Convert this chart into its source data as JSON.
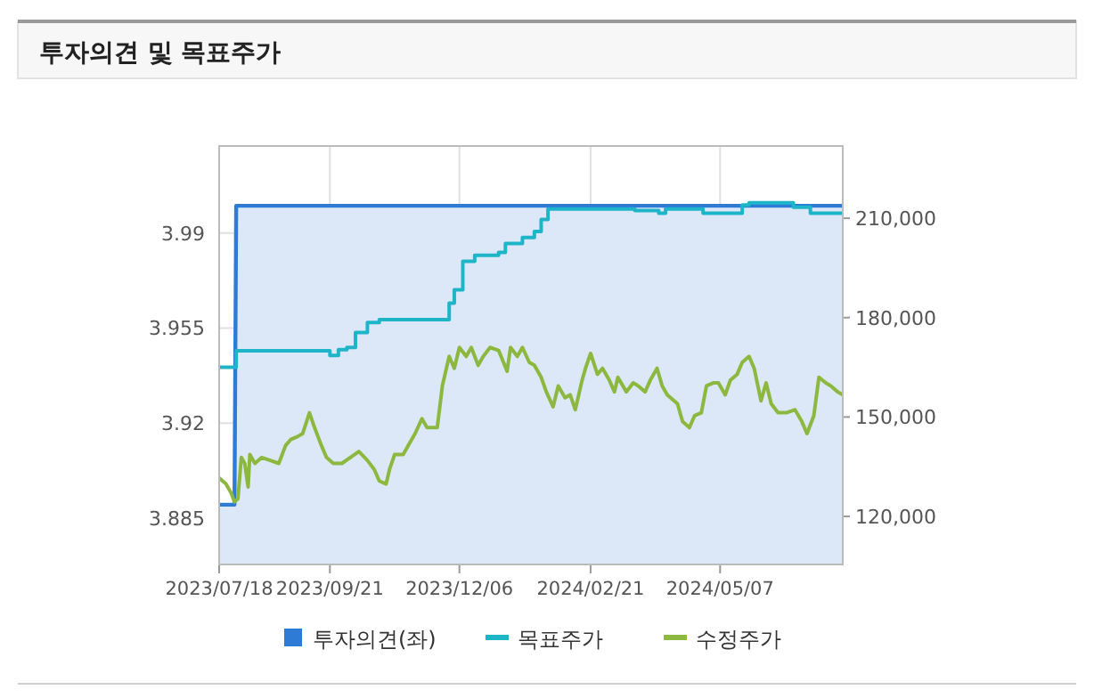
{
  "chart_data": {
    "type": "line",
    "title": "투자의견 및 목표주가",
    "grid": true,
    "legend": "bottom",
    "line_style": "solid",
    "xlim": [
      "2023-07-18",
      "2024-07-18"
    ],
    "xticks": [
      {
        "value": "2023-07-18",
        "label": "2023/07/18"
      },
      {
        "value": "2023-09-21",
        "label": "2023/09/21"
      },
      {
        "value": "2023-12-06",
        "label": "2023/12/06"
      },
      {
        "value": "2024-02-21",
        "label": "2024/02/21"
      },
      {
        "value": "2024-05-07",
        "label": "2024/05/07"
      }
    ],
    "ylim": [
      3.868,
      4.022
    ],
    "yticks": [
      3.885,
      3.92,
      3.955,
      3.99
    ],
    "y2lim": [
      105500,
      231800
    ],
    "y2ticks": [
      {
        "value": 120000,
        "label": "120,000"
      },
      {
        "value": 150000,
        "label": "150,000"
      },
      {
        "value": 180000,
        "label": "180,000"
      },
      {
        "value": 210000,
        "label": "210,000"
      }
    ],
    "series": [
      {
        "name": "투자의견(좌)",
        "type": "area",
        "color": "#2e7bd6",
        "x": [
          "2023-07-18",
          "2023-07-27",
          "2023-07-28",
          "2024-07-18"
        ],
        "values": [
          3.89,
          3.89,
          4.0,
          4.0
        ]
      },
      {
        "name": "목표주가",
        "type": "step",
        "axis": "y2",
        "color": "#1fb5c9",
        "x": [
          "2023-07-18",
          "2023-07-28",
          "2023-09-21",
          "2023-09-26",
          "2023-10-01",
          "2023-10-06",
          "2023-10-13",
          "2023-10-20",
          "2023-11-30",
          "2023-12-03",
          "2023-12-08",
          "2023-12-15",
          "2023-12-29",
          "2024-01-02",
          "2024-01-12",
          "2024-01-19",
          "2024-01-23",
          "2024-01-27",
          "2024-03-18",
          "2024-04-01",
          "2024-04-05",
          "2024-04-27",
          "2024-05-20",
          "2024-05-24",
          "2024-06-19",
          "2024-06-29",
          "2024-07-18"
        ],
        "values": [
          165000,
          170000,
          168600,
          170300,
          171000,
          175500,
          178500,
          179400,
          184400,
          188400,
          197000,
          198800,
          199700,
          202400,
          204200,
          206000,
          209600,
          212800,
          212300,
          211500,
          212800,
          211500,
          214000,
          214700,
          213300,
          211500,
          211500
        ]
      },
      {
        "name": "수정주가",
        "axis": "y2",
        "color": "#8db840",
        "x": [
          "2023-07-18",
          "2023-07-22",
          "2023-07-25",
          "2023-07-27",
          "2023-07-29",
          "2023-07-31",
          "2023-08-02",
          "2023-08-04",
          "2023-08-05",
          "2023-08-08",
          "2023-08-12",
          "2023-08-17",
          "2023-08-22",
          "2023-08-26",
          "2023-08-29",
          "2023-09-02",
          "2023-09-05",
          "2023-09-09",
          "2023-09-12",
          "2023-09-16",
          "2023-09-19",
          "2023-09-23",
          "2023-09-28",
          "2023-10-03",
          "2023-10-08",
          "2023-10-13",
          "2023-10-17",
          "2023-10-20",
          "2023-10-24",
          "2023-10-26",
          "2023-10-29",
          "2023-11-03",
          "2023-11-07",
          "2023-11-10",
          "2023-11-14",
          "2023-11-17",
          "2023-11-23",
          "2023-11-26",
          "2023-11-30",
          "2023-12-03",
          "2023-12-06",
          "2023-12-10",
          "2023-12-13",
          "2023-12-17",
          "2023-12-20",
          "2023-12-24",
          "2023-12-29",
          "2024-01-03",
          "2024-01-05",
          "2024-01-09",
          "2024-01-12",
          "2024-01-16",
          "2024-01-19",
          "2024-01-23",
          "2024-01-26",
          "2024-01-30",
          "2024-02-02",
          "2024-02-06",
          "2024-02-09",
          "2024-02-12",
          "2024-02-16",
          "2024-02-18",
          "2024-02-21",
          "2024-02-25",
          "2024-02-28",
          "2024-03-03",
          "2024-03-06",
          "2024-03-08",
          "2024-03-13",
          "2024-03-17",
          "2024-03-20",
          "2024-03-24",
          "2024-03-27",
          "2024-03-31",
          "2024-04-03",
          "2024-04-06",
          "2024-04-12",
          "2024-04-15",
          "2024-04-19",
          "2024-04-22",
          "2024-04-26",
          "2024-04-29",
          "2024-05-03",
          "2024-05-06",
          "2024-05-10",
          "2024-05-13",
          "2024-05-17",
          "2024-05-20",
          "2024-05-24",
          "2024-05-27",
          "2024-05-31",
          "2024-06-03",
          "2024-06-06",
          "2024-06-10",
          "2024-06-15",
          "2024-06-20",
          "2024-06-24",
          "2024-06-27",
          "2024-07-01",
          "2024-07-04",
          "2024-07-08",
          "2024-07-11",
          "2024-07-15",
          "2024-07-18"
        ],
        "values": [
          131600,
          129800,
          127100,
          124400,
          125300,
          137800,
          136000,
          128900,
          138700,
          136000,
          137800,
          136900,
          136000,
          141400,
          143200,
          144100,
          145000,
          151300,
          146800,
          141400,
          137800,
          136000,
          136000,
          137800,
          139600,
          136900,
          134200,
          130700,
          129800,
          134200,
          138700,
          138700,
          142300,
          145000,
          149500,
          146800,
          146800,
          159400,
          168300,
          164700,
          171000,
          168300,
          171000,
          165600,
          168300,
          171000,
          170100,
          163800,
          171000,
          168300,
          171000,
          166500,
          165600,
          162000,
          157600,
          153100,
          159400,
          155800,
          156700,
          152200,
          161100,
          164700,
          169200,
          162900,
          164700,
          161100,
          157600,
          162000,
          157600,
          160300,
          159400,
          157600,
          161100,
          164700,
          159400,
          156700,
          154000,
          148600,
          146800,
          150400,
          151300,
          159400,
          160300,
          160300,
          156700,
          161100,
          162900,
          166500,
          168300,
          164700,
          154900,
          160300,
          154000,
          151300,
          151300,
          152200,
          148600,
          145000,
          150400,
          162000,
          160300,
          159400,
          157600,
          156700
        ]
      }
    ]
  }
}
